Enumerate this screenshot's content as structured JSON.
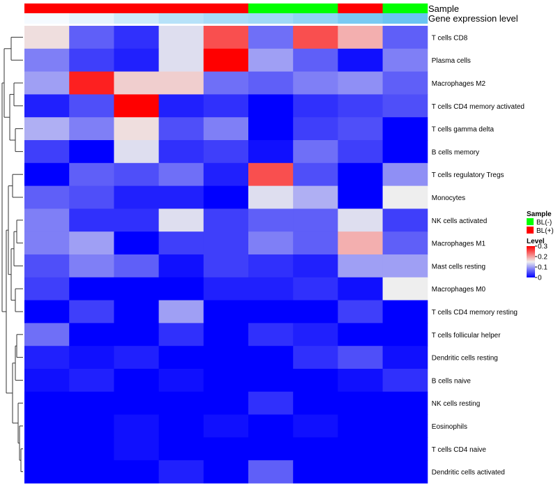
{
  "chart_data": {
    "type": "heatmap",
    "annotation_labels": [
      "Sample",
      "Gene expression level"
    ],
    "rows": [
      "T cells CD8",
      "Plasma cells",
      "Macrophages M2",
      "T cells CD4 memory activated",
      "T cells gamma delta",
      "B cells memory",
      "T cells regulatory  Tregs",
      "Monocytes",
      "NK cells activated",
      "Macrophages M1",
      "Mast cells resting",
      "Macrophages M0",
      "T cells CD4 memory resting",
      "T cells follicular helper",
      "Dendritic cells resting",
      "B cells naive",
      "NK cells resting",
      "Eosinophils",
      "T cells CD4 naive",
      "Dendritic cells activated"
    ],
    "sample_groups": [
      "BL(+)",
      "BL(+)",
      "BL(+)",
      "BL(+)",
      "BL(+)",
      "BL(-)",
      "BL(-)",
      "BL(+)",
      "BL(-)"
    ],
    "gene_expression_level": [
      0.0,
      0.02,
      0.05,
      0.08,
      0.1,
      0.11,
      0.13,
      0.16,
      0.18
    ],
    "values": [
      [
        0.16,
        0.06,
        0.03,
        0.14,
        0.25,
        0.07,
        0.25,
        0.19,
        0.06
      ],
      [
        0.08,
        0.04,
        0.02,
        0.14,
        0.3,
        0.1,
        0.06,
        0.01,
        0.08
      ],
      [
        0.1,
        0.28,
        0.17,
        0.17,
        0.07,
        0.06,
        0.08,
        0.09,
        0.06
      ],
      [
        0.02,
        0.05,
        0.3,
        0.02,
        0.03,
        0.0,
        0.03,
        0.04,
        0.05
      ],
      [
        0.11,
        0.08,
        0.16,
        0.05,
        0.08,
        0.0,
        0.04,
        0.05,
        0.0
      ],
      [
        0.04,
        0.0,
        0.14,
        0.03,
        0.04,
        0.01,
        0.07,
        0.04,
        0.0
      ],
      [
        0.0,
        0.06,
        0.05,
        0.07,
        0.02,
        0.25,
        0.05,
        0.0,
        0.09
      ],
      [
        0.06,
        0.05,
        0.02,
        0.02,
        0.0,
        0.14,
        0.11,
        0.0,
        0.15
      ],
      [
        0.08,
        0.03,
        0.03,
        0.14,
        0.04,
        0.06,
        0.06,
        0.14,
        0.04
      ],
      [
        0.08,
        0.1,
        0.0,
        0.04,
        0.04,
        0.08,
        0.06,
        0.19,
        0.06
      ],
      [
        0.05,
        0.08,
        0.06,
        0.01,
        0.04,
        0.03,
        0.02,
        0.1,
        0.1
      ],
      [
        0.04,
        0.0,
        0.0,
        0.0,
        0.02,
        0.02,
        0.03,
        0.01,
        0.15
      ],
      [
        0.0,
        0.04,
        0.0,
        0.1,
        0.0,
        0.0,
        0.0,
        0.04,
        0.0
      ],
      [
        0.07,
        0.0,
        0.0,
        0.03,
        0.0,
        0.03,
        0.02,
        0.0,
        0.0
      ],
      [
        0.02,
        0.01,
        0.02,
        0.0,
        0.0,
        0.0,
        0.03,
        0.05,
        0.01
      ],
      [
        0.01,
        0.02,
        0.0,
        0.01,
        0.0,
        0.0,
        0.0,
        0.01,
        0.03
      ],
      [
        0.0,
        0.0,
        0.0,
        0.0,
        0.0,
        0.03,
        0.0,
        0.0,
        0.0
      ],
      [
        0.0,
        0.0,
        0.01,
        0.0,
        0.01,
        0.0,
        0.01,
        0.0,
        0.0
      ],
      [
        0.0,
        0.0,
        0.01,
        0.0,
        0.0,
        0.0,
        0.0,
        0.0,
        0.0
      ],
      [
        0.0,
        0.0,
        0.0,
        0.02,
        0.0,
        0.06,
        0.0,
        0.0,
        0.0
      ]
    ],
    "color_scale": {
      "low": "#0000FF",
      "mid": "#EEEEEE",
      "high": "#FF0000",
      "min": 0,
      "mid_value": 0.15,
      "max": 0.3
    },
    "sample_colors": {
      "BL(-)": "#00FF00",
      "BL(+)": "#FF0000"
    },
    "legend": {
      "sample_title": "Sample",
      "sample_entries": [
        "BL(-)",
        "BL(+)"
      ],
      "level_title": "Level",
      "level_ticks": [
        "0.3",
        "0.2",
        "0.1",
        "0"
      ],
      "level_tick_values": [
        0.3,
        0.2,
        0.1,
        0
      ]
    },
    "dendrogram": "row"
  }
}
